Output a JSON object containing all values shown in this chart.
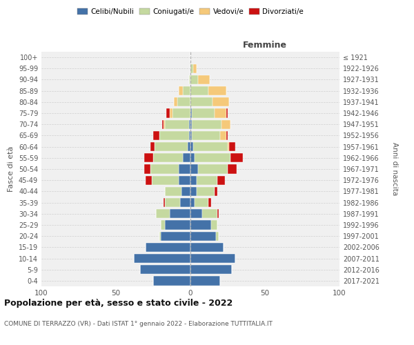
{
  "age_groups": [
    "0-4",
    "5-9",
    "10-14",
    "15-19",
    "20-24",
    "25-29",
    "30-34",
    "35-39",
    "40-44",
    "45-49",
    "50-54",
    "55-59",
    "60-64",
    "65-69",
    "70-74",
    "75-79",
    "80-84",
    "85-89",
    "90-94",
    "95-99",
    "100+"
  ],
  "birth_years": [
    "2017-2021",
    "2012-2016",
    "2007-2011",
    "2002-2006",
    "1997-2001",
    "1992-1996",
    "1987-1991",
    "1982-1986",
    "1977-1981",
    "1972-1976",
    "1967-1971",
    "1962-1966",
    "1957-1961",
    "1952-1956",
    "1947-1951",
    "1942-1946",
    "1937-1941",
    "1932-1936",
    "1927-1931",
    "1922-1926",
    "≤ 1921"
  ],
  "male": {
    "celibi": [
      25,
      34,
      38,
      30,
      20,
      17,
      14,
      7,
      6,
      8,
      8,
      5,
      2,
      1,
      1,
      0,
      0,
      0,
      0,
      0,
      0
    ],
    "coniugati": [
      0,
      0,
      0,
      0,
      1,
      3,
      9,
      10,
      11,
      18,
      19,
      20,
      22,
      20,
      16,
      12,
      9,
      5,
      1,
      0,
      0
    ],
    "vedovi": [
      0,
      0,
      0,
      0,
      0,
      0,
      0,
      0,
      0,
      0,
      0,
      0,
      0,
      0,
      1,
      2,
      2,
      3,
      0,
      0,
      0
    ],
    "divorziati": [
      0,
      0,
      0,
      0,
      0,
      0,
      0,
      1,
      0,
      4,
      4,
      6,
      3,
      4,
      1,
      2,
      0,
      0,
      0,
      0,
      0
    ]
  },
  "female": {
    "nubili": [
      20,
      28,
      30,
      22,
      17,
      14,
      8,
      3,
      4,
      4,
      5,
      3,
      2,
      1,
      1,
      1,
      0,
      0,
      0,
      0,
      0
    ],
    "coniugate": [
      0,
      0,
      0,
      0,
      2,
      4,
      10,
      9,
      12,
      14,
      20,
      24,
      23,
      19,
      20,
      15,
      15,
      12,
      5,
      2,
      0
    ],
    "vedove": [
      0,
      0,
      0,
      0,
      0,
      0,
      0,
      0,
      0,
      0,
      0,
      0,
      1,
      4,
      6,
      8,
      11,
      12,
      8,
      2,
      0
    ],
    "divorziate": [
      0,
      0,
      0,
      0,
      0,
      0,
      1,
      2,
      2,
      5,
      6,
      8,
      4,
      1,
      0,
      1,
      0,
      0,
      0,
      0,
      0
    ]
  },
  "colors": {
    "celibi": "#4472a8",
    "coniugati": "#c5d9a0",
    "vedovi": "#f5c97a",
    "divorziati": "#cc1111"
  },
  "xlim": 100,
  "title": "Popolazione per età, sesso e stato civile - 2022",
  "subtitle": "COMUNE DI TERRAZZO (VR) - Dati ISTAT 1° gennaio 2022 - Elaborazione TUTTITALIA.IT",
  "ylabel": "Fasce di età",
  "ylabel_right": "Anni di nascita",
  "label_right": "Femmine",
  "bg_color": "#f0f0f0",
  "grid_color": "#cccccc"
}
